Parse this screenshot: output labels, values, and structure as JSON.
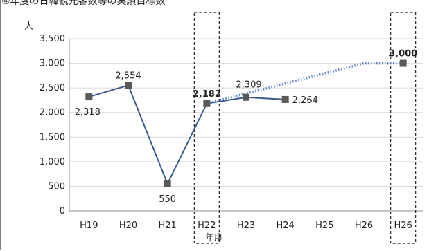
{
  "page": {
    "title": "④年度の日韓観光客数等の実績目標数"
  },
  "chart_data": {
    "type": "line",
    "categories": [
      "H19",
      "H20",
      "H21",
      "H22",
      "H23",
      "H24",
      "H25",
      "H26",
      "H26"
    ],
    "series": [
      {
        "name": "",
        "values": [
          2318,
          2554,
          550,
          2182,
          2309,
          2264,
          null,
          null,
          null
        ],
        "color": "#3a5a8c",
        "style": "solid"
      },
      {
        "name": "",
        "values": [
          null,
          null,
          null,
          2182,
          null,
          null,
          null,
          3000,
          3000
        ],
        "color": "#5b84c6",
        "style": "dotted"
      }
    ],
    "data_labels": [
      {
        "index": 0,
        "text": "2,318",
        "bold": false,
        "pos": "below"
      },
      {
        "index": 1,
        "text": "2,554",
        "bold": false,
        "pos": "above"
      },
      {
        "index": 2,
        "text": "550",
        "bold": false,
        "pos": "below"
      },
      {
        "index": 3,
        "text": "2,182",
        "bold": true,
        "pos": "above"
      },
      {
        "index": 4,
        "text": "2,309",
        "bold": false,
        "pos": "above"
      },
      {
        "index": 5,
        "text": "2,264",
        "bold": false,
        "pos": "right"
      },
      {
        "index": 8,
        "text": "3,000",
        "bold": true,
        "pos": "above"
      }
    ],
    "highlighted_categories": [
      3,
      8
    ],
    "y_ticks": [
      "0",
      "500",
      "1,000",
      "1,500",
      "2,000",
      "2,500",
      "3,000",
      "3,500"
    ],
    "ylim": [
      0,
      3500
    ],
    "ylabel": "人",
    "xlabel": "年度",
    "grid": true,
    "marker_color": "#595959"
  }
}
